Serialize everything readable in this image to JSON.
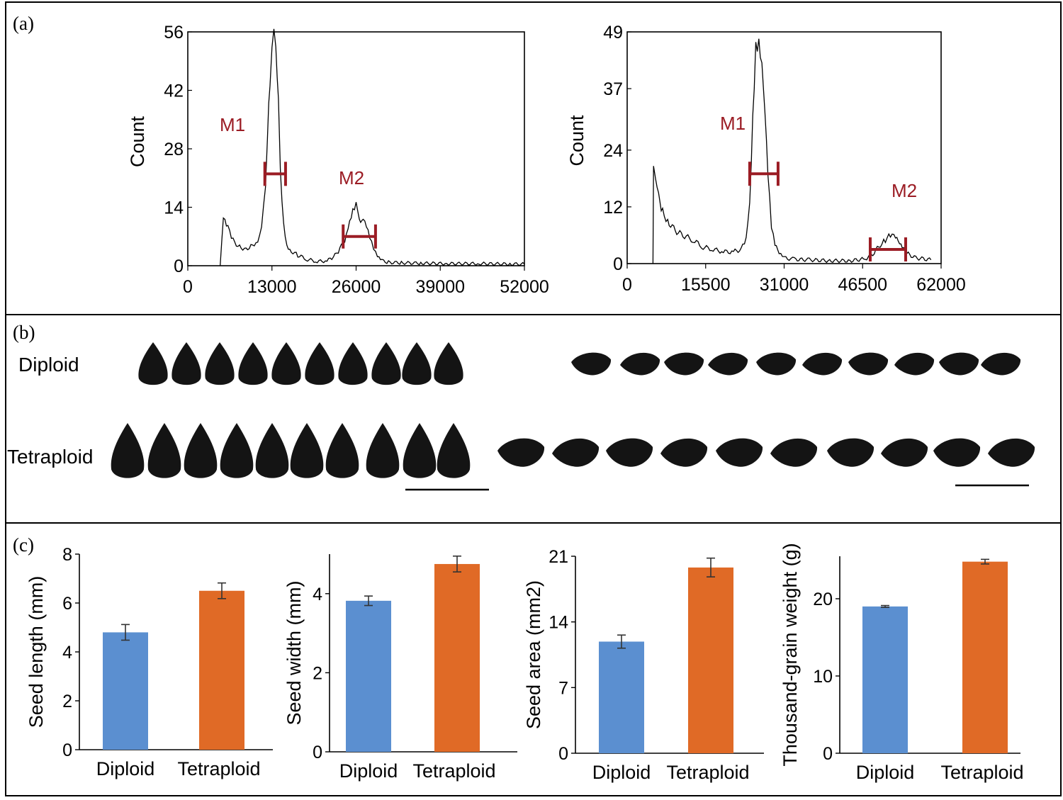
{
  "panel_labels": {
    "a": "(a)",
    "b": "(b)",
    "c": "(c)"
  },
  "colors": {
    "diploid_bar": "#5b8fd0",
    "tetraploid_bar": "#e06a26",
    "marker": "#9b1c24",
    "ink": "#000000",
    "seed": "#141414"
  },
  "panel_b": {
    "row_diploid": "Diploid",
    "row_tetraploid": "Tetraploid"
  },
  "chart_data": [
    {
      "type": "line",
      "id": "flow-diploid",
      "title": "",
      "xlabel": "",
      "ylabel": "Count",
      "xlim": [
        0,
        52000
      ],
      "ylim": [
        0,
        56
      ],
      "xticks": [
        "0",
        "13000",
        "26000",
        "39000",
        "52000"
      ],
      "yticks": [
        "0",
        "14",
        "28",
        "42",
        "56"
      ],
      "series": [
        {
          "name": "Count",
          "x": [
            5000,
            5500,
            6200,
            7000,
            8000,
            9000,
            10000,
            10800,
            11400,
            12000,
            12300,
            12700,
            13000,
            13300,
            13600,
            14000,
            14300,
            14800,
            15300,
            16000,
            17000,
            18500,
            20000,
            21500,
            22500,
            23500,
            24500,
            25000,
            25500,
            26000,
            26300,
            26700,
            27100,
            27600,
            28100,
            28700,
            29300,
            30000,
            31000,
            33000,
            36000,
            40000,
            45000,
            50000,
            52000
          ],
          "y": [
            0,
            11,
            9,
            6,
            4.5,
            4,
            5,
            6,
            10,
            20,
            32,
            44,
            52,
            55,
            50,
            38,
            22,
            10,
            5,
            3.5,
            2.5,
            1.5,
            1,
            1.2,
            2,
            4,
            7,
            10,
            13,
            15,
            13,
            11,
            12,
            10,
            7,
            4,
            2,
            1.2,
            0.8,
            0.7,
            0.6,
            0.5,
            0.5,
            0.4,
            0.4
          ]
        }
      ],
      "markers": [
        {
          "label": "M1",
          "x_start": 11900,
          "x_end": 15100,
          "y": 22
        },
        {
          "label": "M2",
          "x_start": 24000,
          "x_end": 29000,
          "y": 7
        }
      ]
    },
    {
      "type": "line",
      "id": "flow-tetraploid",
      "title": "",
      "xlabel": "",
      "ylabel": "Count",
      "xlim": [
        0,
        62000
      ],
      "ylim": [
        0,
        49
      ],
      "xticks": [
        "0",
        "15500",
        "31000",
        "46500",
        "62000"
      ],
      "yticks": [
        "0",
        "12",
        "24",
        "37",
        "49"
      ],
      "series": [
        {
          "name": "Count",
          "x": [
            5100,
            5200,
            5600,
            6200,
            7000,
            8000,
            9500,
            11000,
            13000,
            15000,
            17000,
            19000,
            21000,
            22500,
            23500,
            24200,
            24800,
            25400,
            26000,
            26600,
            27200,
            27800,
            28500,
            29200,
            30000,
            31000,
            33000,
            36000,
            40000,
            44000,
            47000,
            48500,
            50000,
            51000,
            52000,
            53000,
            53800,
            54600,
            55500,
            57000,
            58500,
            60000
          ],
          "y": [
            0,
            20,
            17,
            14,
            11,
            9,
            7,
            6,
            5,
            3.5,
            3,
            2.5,
            2.5,
            3,
            5,
            12,
            30,
            46,
            48,
            44,
            34,
            20,
            8,
            4,
            2,
            1.2,
            0.9,
            0.8,
            0.6,
            0.6,
            1,
            2,
            4,
            5,
            6,
            5.5,
            4,
            3,
            2,
            1.2,
            1,
            0.8
          ]
        }
      ],
      "markers": [
        {
          "label": "M1",
          "x_start": 24200,
          "x_end": 29800,
          "y": 19
        },
        {
          "label": "M2",
          "x_start": 48000,
          "x_end": 55000,
          "y": 3
        }
      ]
    },
    {
      "type": "bar",
      "id": "seed-length",
      "title": "",
      "xlabel": "",
      "ylabel": "Seed length (mm)",
      "categories": [
        "Diploid",
        "Tetraploid"
      ],
      "values": [
        4.8,
        6.5
      ],
      "errors": [
        0.32,
        0.32
      ],
      "ylim": [
        0,
        8
      ],
      "yticks": [
        "0",
        "2",
        "4",
        "6",
        "8"
      ]
    },
    {
      "type": "bar",
      "id": "seed-width",
      "title": "",
      "xlabel": "",
      "ylabel": "Seed width (mm)",
      "categories": [
        "Diploid",
        "Tetraploid"
      ],
      "values": [
        3.82,
        4.75
      ],
      "errors": [
        0.12,
        0.2
      ],
      "ylim": [
        0,
        5
      ],
      "yticks": [
        "0",
        "2",
        "4"
      ]
    },
    {
      "type": "bar",
      "id": "seed-area",
      "title": "",
      "xlabel": "",
      "ylabel": "Seed area (mm2)",
      "categories": [
        "Diploid",
        "Tetraploid"
      ],
      "values": [
        11.9,
        19.8
      ],
      "errors": [
        0.7,
        1.0
      ],
      "ylim": [
        0,
        21
      ],
      "yticks": [
        "0",
        "7",
        "14",
        "21"
      ]
    },
    {
      "type": "bar",
      "id": "thousand-grain-weight",
      "title": "",
      "xlabel": "",
      "ylabel": "Thousand-grain weight (g)",
      "categories": [
        "Diploid",
        "Tetraploid"
      ],
      "values": [
        19.0,
        24.8
      ],
      "errors": [
        0.12,
        0.3
      ],
      "ylim": [
        0,
        25.5
      ],
      "yticks": [
        "0",
        "10",
        "20"
      ]
    }
  ]
}
